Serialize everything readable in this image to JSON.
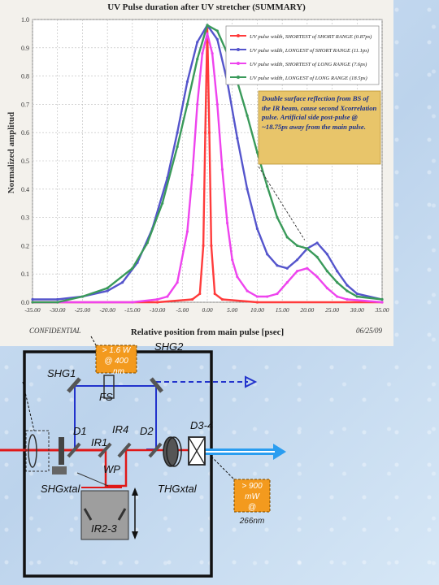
{
  "chart_data": {
    "type": "line",
    "title": "UV Pulse duration after UV stretcher (SUMMARY)",
    "xlabel": "Relative position from main pulse [psec]",
    "ylabel": "Normalized amplitud",
    "xlim": [
      -35,
      35
    ],
    "ylim": [
      0,
      1.0
    ],
    "xticks": [
      "-35.00",
      "-30.00",
      "-25.00",
      "-20.00",
      "-15.00",
      "-10.00",
      "-5.00",
      "0.00",
      "5.00",
      "10.00",
      "15.00",
      "20.00",
      "25.00",
      "30.00",
      "35.00"
    ],
    "yticks": [
      "0.0",
      "0.1",
      "0.2",
      "0.3",
      "0.4",
      "0.5",
      "0.6",
      "0.7",
      "0.8",
      "0.9",
      "1.0"
    ],
    "footer_left": "CONFIDENTIAL",
    "footer_right": "06/25/09",
    "legend_position": "top-right",
    "series": [
      {
        "name": "UV pulse width, SHORTEST of SHORT RANGE (0.87ps)",
        "color": "#ff3b3b",
        "x": [
          -35,
          -10,
          -3,
          -1.5,
          -0.8,
          -0.4,
          0,
          0.4,
          0.8,
          1.5,
          3,
          10,
          35
        ],
        "y": [
          0.0,
          0.0,
          0.01,
          0.03,
          0.2,
          0.6,
          0.97,
          0.6,
          0.2,
          0.03,
          0.01,
          0.0,
          0.0
        ]
      },
      {
        "name": "UV pulse width, LONGEST of SHORT RANGE (11.1ps)",
        "color": "#5555cc",
        "x": [
          -35,
          -30,
          -25,
          -20,
          -17,
          -14,
          -11,
          -8,
          -6,
          -4,
          -2,
          0,
          2,
          4,
          6,
          8,
          10,
          12,
          14,
          16,
          18,
          20,
          22,
          24,
          26,
          28,
          30,
          35
        ],
        "y": [
          0.01,
          0.01,
          0.02,
          0.04,
          0.07,
          0.14,
          0.26,
          0.44,
          0.6,
          0.78,
          0.92,
          0.98,
          0.93,
          0.78,
          0.58,
          0.4,
          0.26,
          0.17,
          0.13,
          0.12,
          0.15,
          0.19,
          0.21,
          0.17,
          0.11,
          0.06,
          0.03,
          0.01
        ]
      },
      {
        "name": "UV pulse width, SHORTEST of LONG RANGE (7.6ps)",
        "color": "#ee44ee",
        "x": [
          -35,
          -15,
          -10,
          -8,
          -6,
          -4,
          -3,
          -2,
          -1,
          0,
          1,
          2,
          3,
          4,
          5,
          6,
          8,
          10,
          12,
          14,
          16,
          18,
          20,
          22,
          24,
          26,
          28,
          35
        ],
        "y": [
          0.0,
          0.0,
          0.01,
          0.02,
          0.07,
          0.25,
          0.45,
          0.7,
          0.88,
          0.95,
          0.88,
          0.7,
          0.47,
          0.28,
          0.15,
          0.09,
          0.04,
          0.02,
          0.02,
          0.03,
          0.07,
          0.11,
          0.12,
          0.09,
          0.05,
          0.02,
          0.01,
          0.0
        ]
      },
      {
        "name": "UV pulse width, LONGEST of LONG RANGE (18.5ps)",
        "color": "#3a9a5a",
        "x": [
          -35,
          -30,
          -25,
          -20,
          -15,
          -12,
          -9,
          -6,
          -4,
          -2,
          0,
          2,
          4,
          6,
          8,
          10,
          12,
          14,
          16,
          18,
          20,
          22,
          24,
          26,
          28,
          30,
          35
        ],
        "y": [
          0.0,
          0.0,
          0.02,
          0.05,
          0.12,
          0.21,
          0.35,
          0.55,
          0.7,
          0.86,
          0.98,
          0.96,
          0.88,
          0.78,
          0.66,
          0.53,
          0.41,
          0.3,
          0.23,
          0.2,
          0.19,
          0.16,
          0.11,
          0.07,
          0.04,
          0.02,
          0.01
        ]
      }
    ],
    "annotation": "Double surface reflection from BS of the IR beam, cause second Xcorrelation pulse. Artificial side post-pulse @ ~18.75ps away from the main pulse.",
    "annotation_target": {
      "x": 19.5,
      "y": 0.22
    }
  },
  "diagram": {
    "labels": {
      "shg1": "SHG1",
      "shg2": "SHG2",
      "fs": "FS",
      "d1": "D1",
      "ir1": "IR1",
      "ir4": "IR4",
      "d2": "D2",
      "d34": "D3-4",
      "wp": "WP",
      "shgxtal": "SHGxtal",
      "thgxtal": "THGxtal",
      "ir23": "IR2-3"
    },
    "callout_top": [
      "> 1.6 W",
      "@ 400",
      "nm"
    ],
    "callout_right": [
      "> 900",
      "mW",
      "@",
      "266nm"
    ],
    "colors": {
      "red_beam": "#e01818",
      "blue_beam": "#2233cc",
      "cyan_beam": "#2a9df0",
      "callout": "#f39a1e"
    }
  }
}
